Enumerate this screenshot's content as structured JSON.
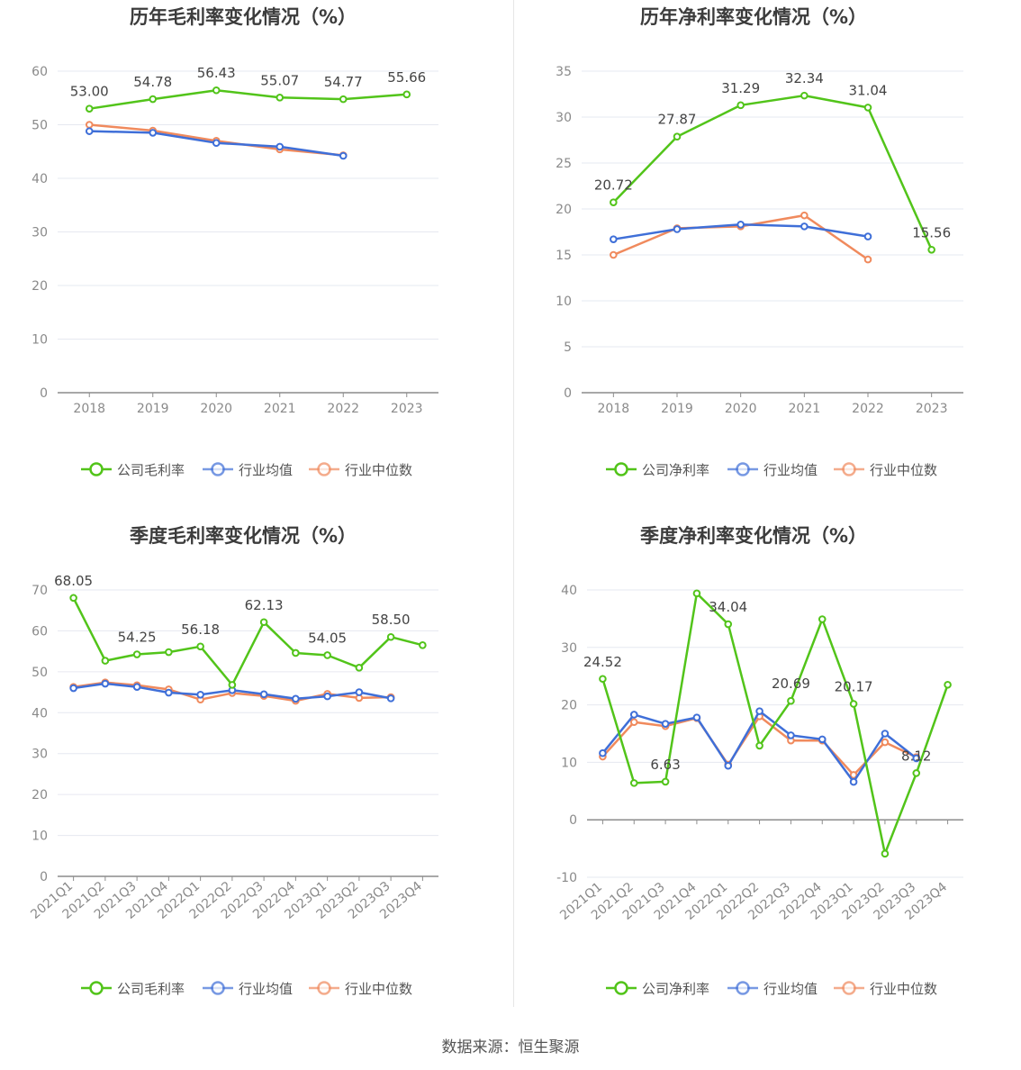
{
  "source_text": "数据来源：恒生聚源",
  "colors": {
    "company": "#52c41a",
    "avg": "#3f6fd8",
    "median": "#f08a5d",
    "grid": "#e6e8f0",
    "axis": "#8c8c8c"
  },
  "charts": [
    {
      "title": "历年毛利率变化情况（%）",
      "legend": [
        "公司毛利率",
        "行业均值",
        "行业中位数"
      ]
    },
    {
      "title": "历年净利率变化情况（%）",
      "legend": [
        "公司净利率",
        "行业均值",
        "行业中位数"
      ]
    },
    {
      "title": "季度毛利率变化情况（%）",
      "legend": [
        "公司毛利率",
        "行业均值",
        "行业中位数"
      ]
    },
    {
      "title": "季度净利率变化情况（%）",
      "legend": [
        "公司净利率",
        "行业均值",
        "行业中位数"
      ]
    }
  ],
  "chart_data": [
    {
      "type": "line",
      "title": "历年毛利率变化情况（%）",
      "categories": [
        "2018",
        "2019",
        "2020",
        "2021",
        "2022",
        "2023"
      ],
      "ylim": [
        0,
        60
      ],
      "yticks": [
        0,
        10,
        20,
        30,
        40,
        50,
        60
      ],
      "grid": true,
      "legend_position": "bottom",
      "rotate_x_labels": false,
      "series": [
        {
          "name": "公司毛利率",
          "values": [
            53.0,
            54.78,
            56.43,
            55.07,
            54.77,
            55.66
          ],
          "labels": [
            "53.00",
            "54.78",
            "56.43",
            "55.07",
            "54.77",
            "55.66"
          ]
        },
        {
          "name": "行业均值",
          "values": [
            48.8,
            48.5,
            46.6,
            45.9,
            44.2,
            null
          ]
        },
        {
          "name": "行业中位数",
          "values": [
            50.0,
            48.9,
            47.0,
            45.4,
            44.3,
            null
          ]
        }
      ]
    },
    {
      "type": "line",
      "title": "历年净利率变化情况（%）",
      "categories": [
        "2018",
        "2019",
        "2020",
        "2021",
        "2022",
        "2023"
      ],
      "ylim": [
        0,
        35
      ],
      "yticks": [
        0,
        5,
        10,
        15,
        20,
        25,
        30,
        35
      ],
      "grid": true,
      "legend_position": "bottom",
      "rotate_x_labels": false,
      "series": [
        {
          "name": "公司净利率",
          "values": [
            20.72,
            27.87,
            31.29,
            32.34,
            31.04,
            15.56
          ],
          "labels": [
            "20.72",
            "27.87",
            "31.29",
            "32.34",
            "31.04",
            "15.56"
          ]
        },
        {
          "name": "行业均值",
          "values": [
            16.7,
            17.8,
            18.3,
            18.1,
            17.0,
            null
          ]
        },
        {
          "name": "行业中位数",
          "values": [
            15.0,
            17.9,
            18.1,
            19.3,
            14.5,
            null
          ]
        }
      ]
    },
    {
      "type": "line",
      "title": "季度毛利率变化情况（%）",
      "categories": [
        "2021Q1",
        "2021Q2",
        "2021Q3",
        "2021Q4",
        "2022Q1",
        "2022Q2",
        "2022Q3",
        "2022Q4",
        "2023Q1",
        "2023Q2",
        "2023Q3",
        "2023Q4"
      ],
      "ylim": [
        0,
        70
      ],
      "yticks": [
        0,
        10,
        20,
        30,
        40,
        50,
        60,
        70
      ],
      "grid": true,
      "legend_position": "bottom",
      "rotate_x_labels": true,
      "series": [
        {
          "name": "公司毛利率",
          "values": [
            68.05,
            52.7,
            54.25,
            54.8,
            56.18,
            46.8,
            62.13,
            54.6,
            54.05,
            51.0,
            58.5,
            56.5
          ],
          "labels": [
            "68.05",
            null,
            "54.25",
            null,
            "56.18",
            null,
            "62.13",
            null,
            "54.05",
            null,
            "58.50",
            null
          ]
        },
        {
          "name": "行业均值",
          "values": [
            46.0,
            47.1,
            46.3,
            44.9,
            44.4,
            45.5,
            44.5,
            43.4,
            44.0,
            45.0,
            43.5,
            null
          ]
        },
        {
          "name": "行业中位数",
          "values": [
            46.3,
            47.4,
            46.7,
            45.7,
            43.2,
            44.8,
            44.1,
            42.9,
            44.6,
            43.6,
            43.8,
            null
          ]
        }
      ]
    },
    {
      "type": "line",
      "title": "季度净利率变化情况（%）",
      "categories": [
        "2021Q1",
        "2021Q2",
        "2021Q3",
        "2021Q4",
        "2022Q1",
        "2022Q2",
        "2022Q3",
        "2022Q4",
        "2023Q1",
        "2023Q2",
        "2023Q3",
        "2023Q4"
      ],
      "ylim": [
        -10,
        40
      ],
      "yticks": [
        -10,
        0,
        10,
        20,
        30,
        40
      ],
      "grid": true,
      "legend_position": "bottom",
      "rotate_x_labels": true,
      "series": [
        {
          "name": "公司净利率",
          "values": [
            24.52,
            6.4,
            6.63,
            39.4,
            34.04,
            12.9,
            20.69,
            34.9,
            20.17,
            -5.9,
            8.12,
            23.5
          ],
          "labels": [
            "24.52",
            null,
            "6.63",
            null,
            "34.04",
            null,
            "20.69",
            null,
            "20.17",
            null,
            "8.12",
            null
          ]
        },
        {
          "name": "行业均值",
          "values": [
            11.6,
            18.3,
            16.7,
            17.8,
            9.4,
            18.9,
            14.7,
            14.0,
            6.6,
            15.0,
            10.7,
            null
          ]
        },
        {
          "name": "行业中位数",
          "values": [
            11.0,
            17.0,
            16.3,
            17.7,
            9.6,
            18.0,
            13.8,
            13.8,
            7.8,
            13.5,
            10.9,
            null
          ]
        }
      ]
    }
  ]
}
